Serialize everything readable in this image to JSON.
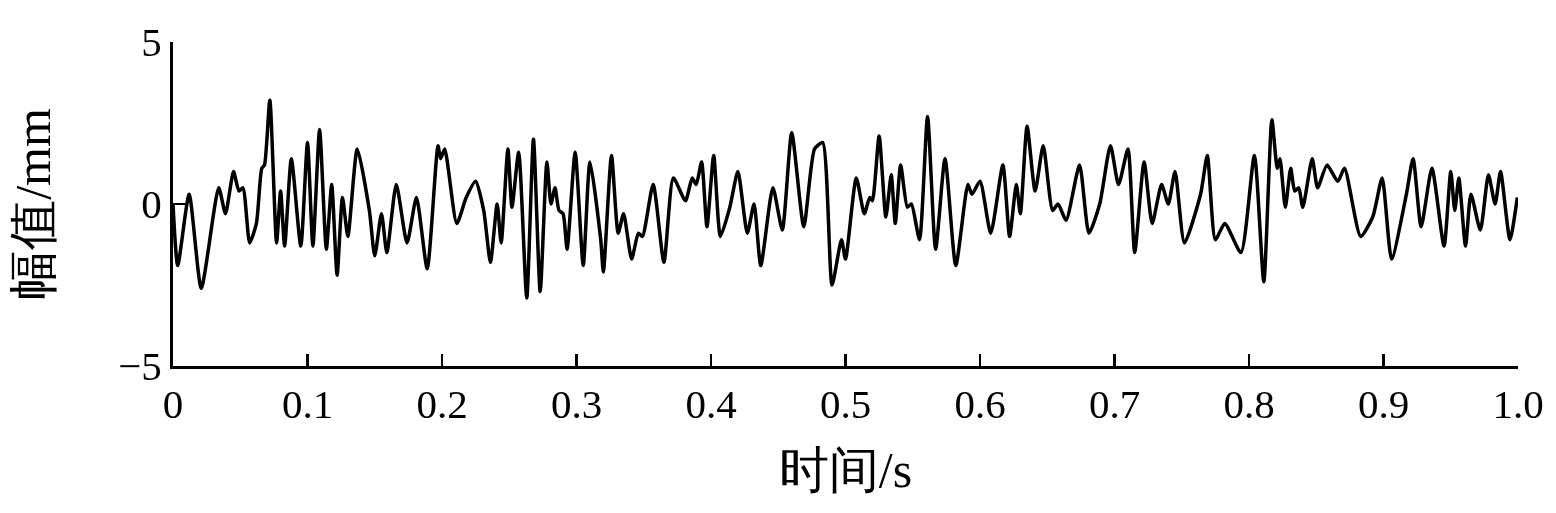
{
  "chart_data": {
    "type": "line",
    "xlabel": "时间/s",
    "ylabel": "幅值/mm",
    "x": [
      0,
      0.0035,
      0.012,
      0.021,
      0.034,
      0.039,
      0.045,
      0.049,
      0.052,
      0.057,
      0.062,
      0.066,
      0.068,
      0.072,
      0.077,
      0.08,
      0.083,
      0.088,
      0.095,
      0.1,
      0.104,
      0.109,
      0.114,
      0.118,
      0.122,
      0.126,
      0.13,
      0.137,
      0.146,
      0.15,
      0.155,
      0.159,
      0.166,
      0.174,
      0.181,
      0.189,
      0.197,
      0.199,
      0.202,
      0.211,
      0.218,
      0.225,
      0.231,
      0.236,
      0.241,
      0.244,
      0.249,
      0.252,
      0.257,
      0.263,
      0.268,
      0.273,
      0.278,
      0.281,
      0.284,
      0.287,
      0.29,
      0.293,
      0.299,
      0.305,
      0.31,
      0.318,
      0.32,
      0.326,
      0.331,
      0.335,
      0.341,
      0.346,
      0.349,
      0.357,
      0.365,
      0.372,
      0.381,
      0.386,
      0.389,
      0.393,
      0.397,
      0.402,
      0.407,
      0.414,
      0.42,
      0.427,
      0.432,
      0.437,
      0.446,
      0.453,
      0.46,
      0.469,
      0.477,
      0.483,
      0.49,
      0.497,
      0.5,
      0.508,
      0.514,
      0.518,
      0.52,
      0.525,
      0.53,
      0.534,
      0.537,
      0.541,
      0.546,
      0.549,
      0.555,
      0.561,
      0.567,
      0.574,
      0.582,
      0.591,
      0.594,
      0.6,
      0.608,
      0.617,
      0.622,
      0.627,
      0.63,
      0.635,
      0.641,
      0.647,
      0.654,
      0.658,
      0.664,
      0.674,
      0.681,
      0.689,
      0.697,
      0.703,
      0.71,
      0.715,
      0.722,
      0.728,
      0.735,
      0.74,
      0.745,
      0.752,
      0.764,
      0.769,
      0.775,
      0.782,
      0.794,
      0.804,
      0.811,
      0.817,
      0.821,
      0.823,
      0.827,
      0.831,
      0.834,
      0.837,
      0.84,
      0.847,
      0.851,
      0.858,
      0.866,
      0.871,
      0.883,
      0.892,
      0.899,
      0.906,
      0.917,
      0.922,
      0.928,
      0.936,
      0.945,
      0.95,
      0.953,
      0.956,
      0.961,
      0.965,
      0.972,
      0.978,
      0.983,
      0.987,
      0.994,
      0.9995
    ],
    "series": [
      {
        "color": "#000000",
        "values": [
          0,
          -1.9,
          0.3,
          -2.6,
          0.5,
          -0.3,
          1.0,
          0.4,
          0.5,
          -1.2,
          -0.6,
          1.1,
          1.2,
          3.2,
          -1.2,
          0.4,
          -1.3,
          1.4,
          -1.3,
          1.9,
          -1.3,
          2.3,
          -1.4,
          0.6,
          -2.2,
          0.2,
          -1.0,
          1.7,
          -0.2,
          -1.6,
          -0.3,
          -1.5,
          0.6,
          -1.2,
          0.2,
          -2.0,
          1.8,
          1.4,
          1.7,
          -0.6,
          0.2,
          0.7,
          -0.2,
          -1.8,
          0.0,
          -1.2,
          1.7,
          -0.1,
          1.6,
          -2.9,
          2.0,
          -2.7,
          1.3,
          0.0,
          0.5,
          -0.2,
          -0.3,
          -1.4,
          1.6,
          -1.9,
          1.3,
          -1.1,
          -2.1,
          1.5,
          -0.9,
          -0.3,
          -1.7,
          -0.9,
          -1.0,
          0.6,
          -1.8,
          0.8,
          0.1,
          0.8,
          0.6,
          1.3,
          -0.7,
          1.5,
          -1.0,
          -0.1,
          1.0,
          -0.9,
          0.0,
          -1.9,
          0.5,
          -0.8,
          2.2,
          -0.7,
          1.7,
          1.9,
          -2.5,
          -1.1,
          -1.7,
          0.8,
          -0.3,
          0.2,
          0.1,
          2.1,
          -0.4,
          0.9,
          -0.6,
          1.2,
          -0.1,
          0.0,
          -1.1,
          2.7,
          -1.4,
          1.4,
          -1.9,
          0.6,
          0.3,
          0.7,
          -0.9,
          1.2,
          -1.0,
          0.6,
          -0.3,
          2.4,
          0.4,
          1.8,
          -0.2,
          0.0,
          -0.5,
          1.2,
          -0.9,
          0.0,
          1.8,
          0.6,
          1.7,
          -1.5,
          1.3,
          -0.6,
          0.6,
          0.0,
          1.0,
          -1.2,
          0.3,
          1.5,
          -1.1,
          -0.6,
          -1.5,
          1.5,
          -2.4,
          2.6,
          1.1,
          1.4,
          -0.1,
          1.1,
          0.4,
          0.5,
          -0.1,
          1.4,
          0.5,
          1.2,
          0.7,
          1.1,
          -1.0,
          -0.4,
          0.8,
          -1.7,
          0.3,
          1.4,
          -0.7,
          1.1,
          -1.3,
          1.0,
          -0.2,
          0.8,
          -1.3,
          0.3,
          -0.8,
          0.9,
          0.0,
          1.0,
          -1.1,
          0.2
        ]
      }
    ],
    "xlim": [
      0,
      1
    ],
    "ylim": [
      -5,
      5
    ],
    "xticks": [
      0,
      0.1,
      0.2,
      0.3,
      0.4,
      0.5,
      0.6,
      0.7,
      0.8,
      0.9,
      {
        "value": 1,
        "label": "1.0"
      }
    ],
    "yticks": [
      -5,
      0,
      5
    ],
    "line_style": "solid"
  }
}
